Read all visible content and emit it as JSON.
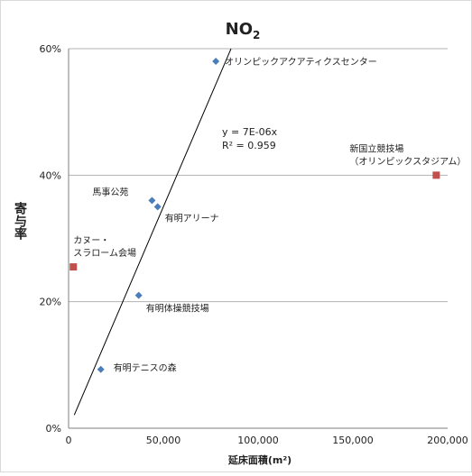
{
  "chart_data": {
    "type": "scatter",
    "title": "NO",
    "title_subscript": "2",
    "xlabel": "延床面積(m²)",
    "ylabel": "寄与率",
    "xlim": [
      0,
      200000
    ],
    "ylim": [
      0,
      60
    ],
    "x_ticks": [
      "0",
      "50,000",
      "100,000",
      "150,000",
      "200,000"
    ],
    "y_ticks": [
      "0%",
      "20%",
      "40%",
      "60%"
    ],
    "grid": "horizontal",
    "series": [
      {
        "marker": "diamond",
        "color": "#4a7ebb",
        "points": [
          {
            "label": "オリンピックアクアティクスセンター",
            "x": 77700,
            "y": 58
          },
          {
            "label": "馬事公苑",
            "x": 44000,
            "y": 36
          },
          {
            "label": "有明アリーナ",
            "x": 47000,
            "y": 35
          },
          {
            "label": "有明体操競技場",
            "x": 37000,
            "y": 21
          },
          {
            "label": "有明テニスの森",
            "x": 17000,
            "y": 9.3
          }
        ]
      },
      {
        "marker": "square",
        "color": "#c0504d",
        "points": [
          {
            "label": "新国立競技場\n（オリンピックスタジアム）",
            "x": 194000,
            "y": 40
          },
          {
            "label": "カヌー・\nスラローム会場",
            "x": 2500,
            "y": 25.5
          }
        ]
      }
    ],
    "trendline": {
      "slope_percent_per_m2": 0.0007,
      "equation": "y = 7E-06x",
      "r_squared": "R² = 0.959"
    }
  }
}
